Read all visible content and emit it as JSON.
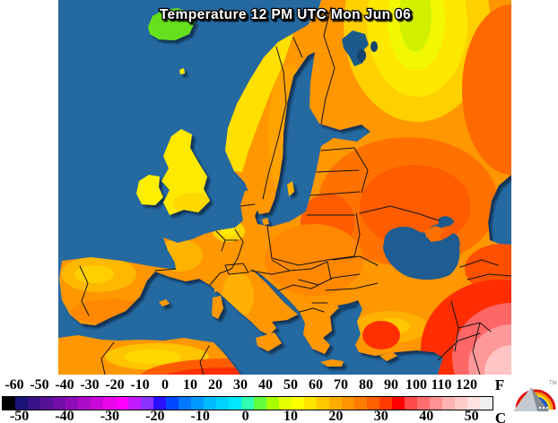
{
  "title": "Temperature 12 PM UTC Mon Jun 06",
  "map": {
    "sea": "#2569a1",
    "sea_dark": "#1d5a8c",
    "lake": "#16436e",
    "black_sea": "#1f5c92",
    "strait": "#14436d",
    "border": "#141414",
    "title_fill": "#ffffff",
    "title_outline": "#000000",
    "shades": {
      "land_base": "#ff9700",
      "iceland": "#66e01e",
      "uk": "#ffe900",
      "ireland": "#ffef00",
      "faroe": "#ffe900",
      "norway_yellow": "#ffe000",
      "scand_orange": "#ffa300",
      "north_yellow2": "#ffd000",
      "north_yellow": "#ffe800",
      "cool_yellow": "#f2f800",
      "cool_green": "#d2f000",
      "ne_hot": "#ff6a00",
      "east_hot1": "#ff7200",
      "east_hot2": "#ff5c00",
      "poland_mid": "#ff8800",
      "alps_yellow": "#ffd400",
      "alps_core": "#ffe800",
      "france_light": "#ffb400",
      "uk_south": "#ffd800",
      "spain_band": "#ffb800",
      "spain_core": "#ffcf00",
      "spain_south": "#ff8800",
      "italy_light": "#ffb000",
      "turkey_band": "#ffb000",
      "turkey_core": "#ffc800",
      "turkey_red": "#ff3000",
      "caucasus_red": "#ff5000",
      "me_red": "#ff2d00",
      "me_pink1": "#ff6666",
      "me_pink2": "#ff9999",
      "me_pink3": "#ffc4c4",
      "africa_band": "#ffc400",
      "africa_core": "#ffd800",
      "africa_red1": "#ff5c00",
      "africa_red2": "#ff3000",
      "crimea": "#ff7200",
      "island": "#ff9700",
      "gotland": "#ffb000"
    }
  },
  "scale": {
    "unit_f": "F",
    "unit_c": "C",
    "f_labels": [
      "-60",
      "-50",
      "-40",
      "-30",
      "-20",
      "-10",
      "0",
      "10",
      "20",
      "30",
      "40",
      "50",
      "60",
      "70",
      "80",
      "90",
      "100",
      "110",
      "120"
    ],
    "c_labels": [
      "-50",
      "-40",
      "-30",
      "-20",
      "-10",
      "0",
      "10",
      "20",
      "30",
      "40",
      "50"
    ],
    "colorbar_colors": [
      "#000000",
      "#1c1478",
      "#3a1287",
      "#571098",
      "#740ea8",
      "#910cb9",
      "#ae0ac9",
      "#cb08da",
      "#e806ea",
      "#ff00ff",
      "#c41aff",
      "#8a33ff",
      "#2a10ff",
      "#0048ff",
      "#0078ff",
      "#0099ff",
      "#00baff",
      "#00d2ff",
      "#00e8ff",
      "#2effb2",
      "#62ff3e",
      "#a8ff00",
      "#e4ff00",
      "#ffff00",
      "#ffe400",
      "#ffc800",
      "#ffae00",
      "#ff9400",
      "#ff7a00",
      "#ff5f00",
      "#ff3b00",
      "#ff0000",
      "#ff4a4a",
      "#ff6e6e",
      "#ff9292",
      "#ffb4b4",
      "#ffcccc",
      "#ffe2e2",
      "#f0eeee"
    ]
  },
  "logo": {
    "trademark": "TM",
    "pyramid_light": "#c4cad0",
    "pyramid_dark": "#858d94",
    "rainbow_red": "#e01010",
    "rainbow_orange": "#ff9800",
    "rainbow_yellow": "#ffe000",
    "rainbow_blue": "#2255cc"
  }
}
